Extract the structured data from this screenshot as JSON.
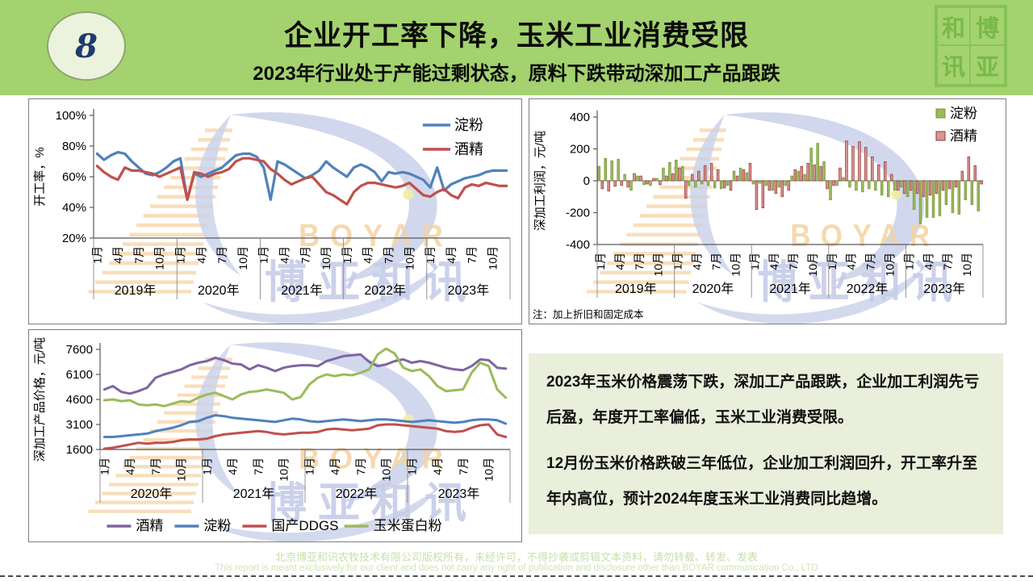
{
  "header": {
    "page_number": "8",
    "title": "企业开工率下降，玉米工业消费受限",
    "subtitle": "2023年行业处于产能过剩状态，原料下跌带动深加工产品跟跌",
    "seal_chars": [
      "和",
      "博",
      "讯",
      "亚"
    ],
    "bg_color": "#a3d26f",
    "badge_bg": "#ecf3dd",
    "badge_text_color": "#1f3b6e"
  },
  "watermark": {
    "brand_en": "BOYAR",
    "brand_cn": "博亚和讯"
  },
  "chart_data": [
    {
      "id": "operating_rate",
      "type": "line",
      "ylabel": "开工率，%",
      "ylim": [
        20,
        100
      ],
      "yticks": [
        100,
        80,
        60,
        40,
        20
      ],
      "ytick_suffix": "%",
      "years": [
        "2019年",
        "2020年",
        "2021年",
        "2022年",
        "2023年"
      ],
      "month_ticks": [
        "1月",
        "4月",
        "7月",
        "10月"
      ],
      "legend_position": "inside-top-right",
      "series": [
        {
          "name": "淀粉",
          "dn": "starch-rate-line",
          "color": "#4F81BD",
          "values": [
            75,
            71,
            74,
            76,
            75,
            70,
            66,
            62,
            61,
            63,
            66,
            70,
            72,
            45,
            62,
            60,
            62,
            64,
            66,
            70,
            74,
            75,
            75,
            73,
            66,
            45,
            70,
            68,
            65,
            62,
            59,
            61,
            64,
            70,
            66,
            63,
            60,
            66,
            68,
            66,
            63,
            57,
            63,
            62,
            63,
            62,
            60,
            58,
            53,
            66,
            51,
            55,
            57,
            59,
            60,
            61,
            63,
            64,
            64,
            64
          ]
        },
        {
          "name": "酒精",
          "dn": "alcohol-rate-line",
          "color": "#C0504D",
          "values": [
            67,
            63,
            60,
            58,
            66,
            64,
            64,
            63,
            62,
            60,
            62,
            64,
            66,
            45,
            63,
            62,
            60,
            62,
            63,
            65,
            70,
            72,
            72,
            71,
            70,
            65,
            62,
            58,
            55,
            57,
            59,
            60,
            55,
            50,
            48,
            45,
            42,
            50,
            54,
            56,
            56,
            55,
            54,
            53,
            54,
            56,
            52,
            48,
            47,
            50,
            52,
            48,
            46,
            53,
            55,
            54,
            56,
            55,
            54,
            54
          ]
        }
      ]
    },
    {
      "id": "processing_profit",
      "type": "bar",
      "ylabel": "深加工利润，元/吨",
      "ylim": [
        -400,
        400
      ],
      "yticks": [
        400,
        200,
        0,
        -200,
        -400
      ],
      "ytick_suffix": "",
      "years": [
        "2019年",
        "2020年",
        "2021年",
        "2022年",
        "2023年"
      ],
      "month_ticks": [
        "1月",
        "4月",
        "7月",
        "10月"
      ],
      "legend_position": "top-right",
      "note": "注：加上折旧和固定成本",
      "series": [
        {
          "name": "淀粉",
          "dn": "starch-profit-bars",
          "color": "#9BBB59",
          "border": "#77933C",
          "values": [
            90,
            140,
            125,
            135,
            40,
            -60,
            30,
            -25,
            -30,
            15,
            80,
            115,
            130,
            90,
            -30,
            -40,
            -20,
            -30,
            -45,
            -50,
            -30,
            60,
            80,
            50,
            -20,
            -15,
            -30,
            -60,
            -40,
            -30,
            30,
            60,
            40,
            205,
            235,
            120,
            -120,
            -30,
            20,
            -40,
            -60,
            -70,
            -50,
            -60,
            -90,
            -100,
            -60,
            -40,
            -100,
            -180,
            -270,
            -230,
            -230,
            -220,
            -150,
            -200,
            -210,
            -120,
            -150,
            -190
          ]
        },
        {
          "name": "酒精",
          "dn": "alcohol-profit-bars",
          "color": "#D99694",
          "border": "#953735",
          "values": [
            -50,
            -65,
            -35,
            -30,
            -40,
            45,
            30,
            -20,
            15,
            -25,
            30,
            45,
            80,
            -110,
            40,
            60,
            95,
            110,
            70,
            -45,
            -60,
            30,
            70,
            110,
            -180,
            -170,
            -60,
            -80,
            -100,
            -60,
            70,
            90,
            110,
            100,
            90,
            -50,
            -30,
            80,
            250,
            215,
            245,
            210,
            150,
            100,
            120,
            40,
            -60,
            -80,
            -60,
            -80,
            -100,
            -90,
            -80,
            -60,
            -50,
            -40,
            60,
            150,
            95,
            -20
          ]
        }
      ]
    },
    {
      "id": "product_price",
      "type": "line",
      "ylabel": "深加工产品价格，元/吨",
      "ylim": [
        1600,
        7600
      ],
      "yticks": [
        7600,
        6100,
        4600,
        3100,
        1600
      ],
      "ytick_suffix": "",
      "years": [
        "2020年",
        "2021年",
        "2022年",
        "2023年"
      ],
      "month_ticks": [
        "1月",
        "4月",
        "7月",
        "10月"
      ],
      "legend_position": "bottom",
      "series": [
        {
          "name": "酒精",
          "dn": "alcohol-price-line",
          "color": "#8064A2",
          "values": [
            5200,
            5400,
            5050,
            4950,
            5100,
            5300,
            5900,
            6100,
            6250,
            6400,
            6650,
            6800,
            6900,
            7100,
            6950,
            6750,
            6700,
            6400,
            6650,
            6500,
            6300,
            6500,
            6600,
            6650,
            6650,
            6600,
            6900,
            7050,
            7200,
            7250,
            7300,
            6850,
            6600,
            6700,
            6900,
            7000,
            6800,
            6900,
            6800,
            6650,
            6500,
            6400,
            6350,
            6600,
            7000,
            6950,
            6500,
            6450
          ]
        },
        {
          "name": "淀粉",
          "dn": "starch-price-line",
          "color": "#4F81BD",
          "values": [
            2350,
            2350,
            2400,
            2450,
            2500,
            2550,
            2700,
            2800,
            2900,
            3050,
            3250,
            3300,
            3500,
            3650,
            3600,
            3500,
            3450,
            3400,
            3350,
            3300,
            3250,
            3350,
            3450,
            3400,
            3300,
            3250,
            3300,
            3350,
            3400,
            3350,
            3300,
            3350,
            3400,
            3400,
            3350,
            3300,
            3250,
            3300,
            3350,
            3300,
            3250,
            3200,
            3250,
            3350,
            3400,
            3400,
            3350,
            3150
          ]
        },
        {
          "name": "国产DDGS",
          "dn": "ddgs-price-line",
          "color": "#C0504D",
          "values": [
            1650,
            1700,
            1800,
            1900,
            2000,
            1950,
            2000,
            2000,
            2050,
            2150,
            2200,
            2200,
            2250,
            2400,
            2500,
            2550,
            2600,
            2650,
            2700,
            2650,
            2550,
            2500,
            2550,
            2600,
            2600,
            2650,
            2800,
            2850,
            2800,
            2750,
            2800,
            2850,
            3050,
            3100,
            3100,
            3050,
            3000,
            2950,
            2900,
            2850,
            2700,
            2650,
            2700,
            2900,
            3050,
            3100,
            2500,
            2350
          ]
        },
        {
          "name": "玉米蛋白粉",
          "dn": "gluten-price-line",
          "color": "#9BBB59",
          "values": [
            4550,
            4600,
            4500,
            4550,
            4300,
            4250,
            4300,
            4200,
            4350,
            4500,
            4450,
            4700,
            4900,
            5000,
            4800,
            4600,
            4900,
            5050,
            5100,
            5200,
            5100,
            5000,
            4600,
            4750,
            5500,
            5900,
            6100,
            6000,
            6100,
            6050,
            6200,
            6400,
            7300,
            7650,
            7350,
            6500,
            6300,
            6400,
            6000,
            5400,
            5100,
            5150,
            5200,
            6200,
            6800,
            6600,
            5200,
            4700
          ]
        }
      ]
    }
  ],
  "summary": {
    "paragraphs": [
      "2023年玉米价格震荡下跌，深加工产品跟跌，企业加工利润先亏后盈，年度开工率偏低，玉米工业消费受限。",
      "12月份玉米价格跌破三年低位，企业加工利润回升，开工率升至年内高位，预计2024年度玉米工业消费同比趋增。"
    ],
    "bg_color": "#e9efdb"
  },
  "footer": {
    "line1_cn": "北京博亚和讯农牧技术有限公司版权所有，未经许可，不得抄袭或剪辑文本资料，请勿转载、转发、发表",
    "line2_en": "This report is meant exclusively for our client and does not carry any right of publication and disclosure other than BOYAR communication Co., LTD"
  }
}
